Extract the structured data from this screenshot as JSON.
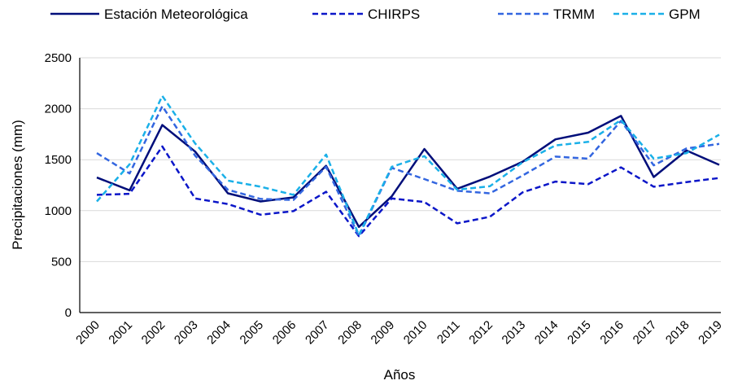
{
  "chart_data": {
    "type": "line",
    "xlabel": "Años",
    "ylabel": "Precipitaciones (mm)",
    "ylim": [
      0,
      2500
    ],
    "yticks": [
      0,
      500,
      1000,
      1500,
      2000,
      2500
    ],
    "grid": "horizontal",
    "legend": "top",
    "categories": [
      "2000",
      "2001",
      "2002",
      "2003",
      "2004",
      "2005",
      "2006",
      "2007",
      "2008",
      "2009",
      "2010",
      "2011",
      "2012",
      "2013",
      "2014",
      "2015",
      "2016",
      "2017",
      "2018",
      "2019"
    ],
    "series": [
      {
        "name": "Estación Meteorológica",
        "color": "#000e7a",
        "dash": "solid",
        "values": [
          1325,
          1200,
          1840,
          1580,
          1170,
          1090,
          1130,
          1440,
          840,
          1140,
          1605,
          1215,
          1335,
          1480,
          1700,
          1765,
          1930,
          1330,
          1590,
          1450
        ]
      },
      {
        "name": "CHIRPS",
        "color": "#0b16c8",
        "dash": "dashed",
        "values": [
          1155,
          1165,
          1630,
          1120,
          1065,
          960,
          995,
          1185,
          750,
          1120,
          1085,
          875,
          940,
          1180,
          1285,
          1260,
          1425,
          1235,
          1280,
          1320
        ]
      },
      {
        "name": "TRMM",
        "color": "#3366e0",
        "dash": "dashed",
        "values": [
          1565,
          1365,
          2025,
          1540,
          1205,
          1115,
          1105,
          1430,
          750,
          1420,
          1310,
          1195,
          1170,
          1345,
          1530,
          1510,
          1880,
          1445,
          1610,
          1655
        ]
      },
      {
        "name": "GPM",
        "color": "#1ab0e8",
        "dash": "dashed",
        "values": [
          1090,
          1455,
          2125,
          1660,
          1295,
          1235,
          1155,
          1550,
          760,
          1430,
          1535,
          1205,
          1240,
          1475,
          1640,
          1675,
          1890,
          1510,
          1565,
          1745
        ]
      }
    ]
  }
}
